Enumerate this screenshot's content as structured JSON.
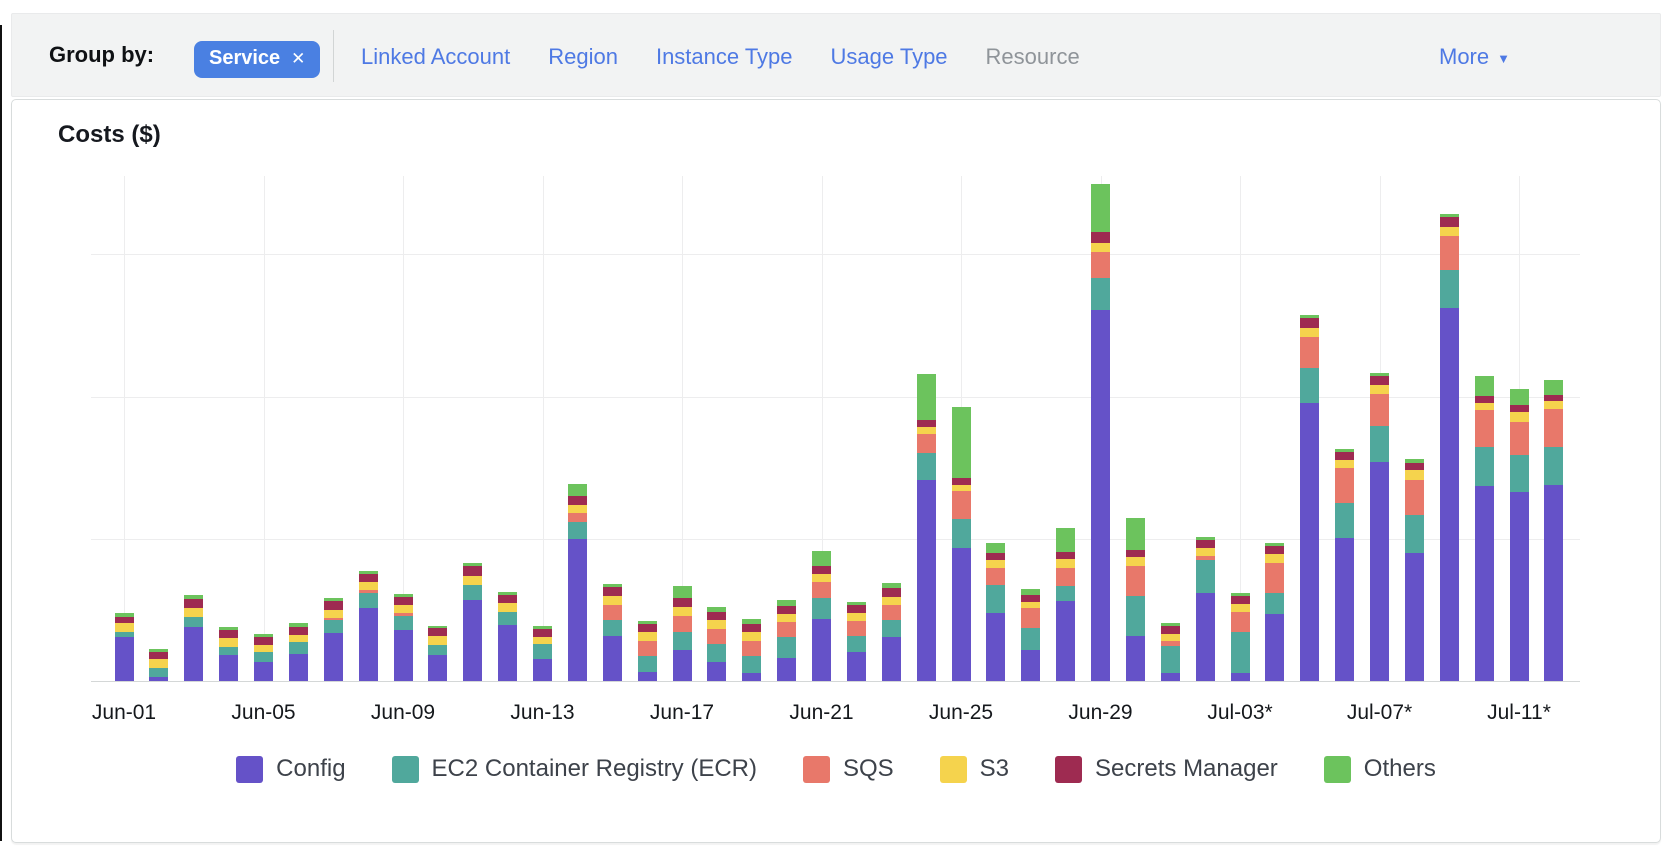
{
  "header": {
    "group_by_label": "Group by:",
    "selected_group": {
      "label": "Service",
      "remove_icon": "✕"
    },
    "links": [
      {
        "label": "Linked Account",
        "enabled": true
      },
      {
        "label": "Region",
        "enabled": true
      },
      {
        "label": "Instance Type",
        "enabled": true
      },
      {
        "label": "Usage Type",
        "enabled": true
      },
      {
        "label": "Resource",
        "enabled": false
      }
    ],
    "more": {
      "label": "More",
      "icon": "▼"
    }
  },
  "chart": {
    "title": "Costs ($)"
  },
  "theme": {
    "pill_blue": "#4a80e2",
    "link_blue": "#4e79e4",
    "disabled_gray": "#8f9499",
    "header_bg": "#f2f3f3",
    "panel_border": "#d8dcdc",
    "grid_color": "#ededee",
    "axis_color": "#d4d7d7",
    "text_dark": "#16191f"
  },
  "chart_data": {
    "type": "bar",
    "stacked": true,
    "title": "Costs ($)",
    "grid": true,
    "legend_position": "bottom",
    "y_axis_tick_labels_visible": false,
    "units": "relative height units (chart shows no y-axis tick labels)",
    "ylim": [
      0,
      508
    ],
    "x_tick_labels": [
      "Jun-01",
      "Jun-05",
      "Jun-09",
      "Jun-13",
      "Jun-17",
      "Jun-21",
      "Jun-25",
      "Jun-29",
      "Jul-03*",
      "Jul-07*",
      "Jul-11*"
    ],
    "x": [
      "Jun-01",
      "Jun-02",
      "Jun-03",
      "Jun-04",
      "Jun-05",
      "Jun-06",
      "Jun-07",
      "Jun-08",
      "Jun-09",
      "Jun-10",
      "Jun-11",
      "Jun-12",
      "Jun-13",
      "Jun-14",
      "Jun-15",
      "Jun-16",
      "Jun-17",
      "Jun-18",
      "Jun-19",
      "Jun-20",
      "Jun-21",
      "Jun-22",
      "Jun-23",
      "Jun-24",
      "Jun-25",
      "Jun-26",
      "Jun-27",
      "Jun-28",
      "Jun-29",
      "Jun-30",
      "Jul-01",
      "Jul-02",
      "Jul-03",
      "Jul-04",
      "Jul-05",
      "Jul-06",
      "Jul-07",
      "Jul-08",
      "Jul-09",
      "Jul-10",
      "Jul-11",
      "Jul-12"
    ],
    "series": [
      {
        "name": "Config",
        "color": "#6552c8",
        "values": [
          44,
          4,
          54,
          26,
          19,
          27,
          48,
          73,
          51,
          26,
          81,
          56,
          22,
          142,
          45,
          9,
          31,
          19,
          8,
          23,
          62,
          29,
          44,
          201,
          133,
          68,
          31,
          80,
          371,
          45,
          8,
          88,
          8,
          67,
          278,
          143,
          219,
          128,
          373,
          195,
          189,
          196
        ]
      },
      {
        "name": "EC2 Container Registry (ECR)",
        "color": "#50a89c",
        "values": [
          5,
          9,
          10,
          8,
          10,
          12,
          13,
          15,
          14,
          10,
          15,
          13,
          15,
          17,
          16,
          16,
          18,
          18,
          17,
          21,
          21,
          16,
          17,
          27,
          29,
          28,
          22,
          15,
          32,
          40,
          27,
          33,
          41,
          21,
          35,
          35,
          36,
          38,
          38,
          39,
          37,
          38
        ]
      },
      {
        "name": "SQS",
        "color": "#e8786a",
        "values": [
          0,
          0,
          0,
          0,
          0,
          0,
          2,
          3,
          3,
          0,
          0,
          0,
          0,
          9,
          15,
          15,
          16,
          15,
          15,
          15,
          16,
          15,
          15,
          19,
          28,
          17,
          20,
          18,
          26,
          30,
          5,
          4,
          20,
          30,
          31,
          35,
          32,
          35,
          34,
          37,
          33,
          38
        ]
      },
      {
        "name": "S3",
        "color": "#f5d34d",
        "values": [
          9,
          9,
          9,
          9,
          7,
          7,
          8,
          8,
          8,
          9,
          9,
          9,
          7,
          8,
          9,
          9,
          9,
          9,
          9,
          8,
          8,
          8,
          8,
          7,
          6,
          8,
          6,
          9,
          9,
          9,
          7,
          8,
          8,
          9,
          9,
          8,
          9,
          10,
          9,
          7,
          10,
          8
        ]
      },
      {
        "name": "Secrets Manager",
        "color": "#9e2b51",
        "values": [
          6,
          7,
          9,
          8,
          8,
          8,
          9,
          8,
          8,
          8,
          10,
          8,
          8,
          9,
          9,
          8,
          9,
          8,
          8,
          8,
          8,
          8,
          9,
          7,
          7,
          7,
          7,
          7,
          11,
          7,
          8,
          8,
          8,
          8,
          10,
          8,
          9,
          7,
          10,
          7,
          7,
          6
        ]
      },
      {
        "name": "Others",
        "color": "#6cc35d",
        "values": [
          4,
          3,
          4,
          3,
          3,
          4,
          3,
          3,
          3,
          2,
          3,
          3,
          3,
          12,
          3,
          3,
          12,
          5,
          5,
          6,
          15,
          3,
          5,
          46,
          71,
          10,
          6,
          24,
          48,
          32,
          3,
          3,
          3,
          3,
          3,
          3,
          3,
          4,
          3,
          20,
          16,
          15
        ]
      }
    ]
  }
}
